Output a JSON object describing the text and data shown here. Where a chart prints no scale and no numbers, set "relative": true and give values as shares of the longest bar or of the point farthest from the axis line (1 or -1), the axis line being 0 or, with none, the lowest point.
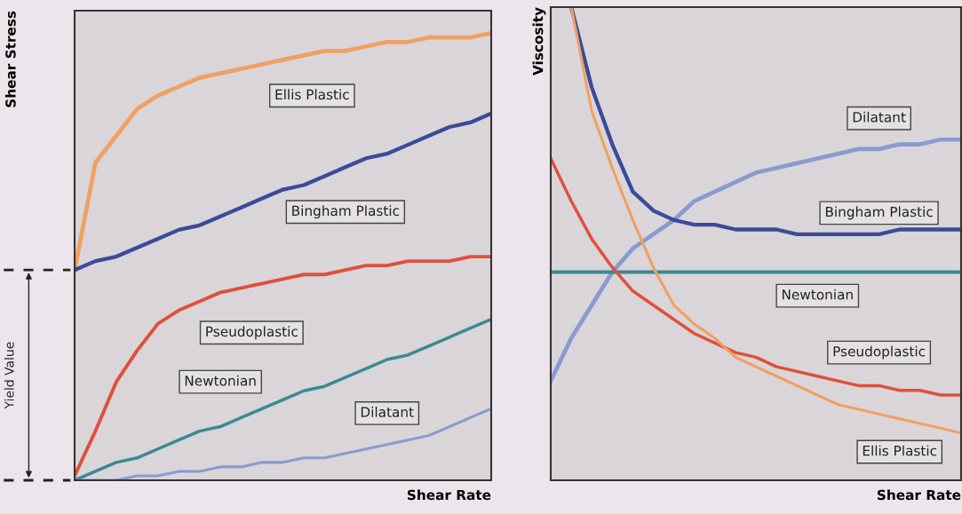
{
  "chart_data": [
    {
      "type": "line",
      "relative": true,
      "ylabel": "Shear Stress",
      "xlabel": "Shear Rate",
      "categories": [
        null,
        null,
        null,
        null,
        null,
        null,
        null,
        null,
        null,
        null,
        null,
        null,
        null,
        null,
        null,
        null,
        null,
        null,
        null,
        null,
        null
      ],
      "annotations": [
        "Yield Value"
      ],
      "series": [
        {
          "name": "Ellis Plastic",
          "color": "#f0a060",
          "values": [
            0.47,
            0.71,
            0.77,
            0.83,
            0.86,
            0.88,
            0.9,
            0.91,
            0.92,
            0.93,
            0.94,
            0.95,
            0.96,
            0.96,
            0.97,
            0.98,
            0.98,
            0.99,
            0.99,
            0.99,
            1.0
          ]
        },
        {
          "name": "Bingham Plastic",
          "color": "#3c4a9a",
          "values": [
            0.47,
            0.49,
            0.5,
            0.52,
            0.54,
            0.56,
            0.57,
            0.59,
            0.61,
            0.63,
            0.65,
            0.66,
            0.68,
            0.7,
            0.72,
            0.73,
            0.75,
            0.77,
            0.79,
            0.8,
            0.82
          ]
        },
        {
          "name": "Pseudoplastic",
          "color": "#e0503a",
          "values": [
            0.01,
            0.11,
            0.22,
            0.29,
            0.35,
            0.38,
            0.4,
            0.42,
            0.43,
            0.44,
            0.45,
            0.46,
            0.46,
            0.47,
            0.48,
            0.48,
            0.49,
            0.49,
            0.49,
            0.5,
            0.5
          ]
        },
        {
          "name": "Newtonian",
          "color": "#3a8a90",
          "values": [
            0,
            0.02,
            0.04,
            0.05,
            0.07,
            0.09,
            0.11,
            0.12,
            0.14,
            0.16,
            0.18,
            0.2,
            0.21,
            0.23,
            0.25,
            0.27,
            0.28,
            0.3,
            0.32,
            0.34,
            0.36
          ]
        },
        {
          "name": "Dilatant",
          "color": "#8a9ad0",
          "values": [
            0,
            0,
            0,
            0.01,
            0.01,
            0.02,
            0.02,
            0.03,
            0.03,
            0.04,
            0.04,
            0.05,
            0.05,
            0.06,
            0.07,
            0.08,
            0.09,
            0.1,
            0.12,
            0.14,
            0.16
          ]
        }
      ]
    },
    {
      "type": "line",
      "relative": true,
      "ylabel": "Viscosity",
      "xlabel": "Shear Rate",
      "categories": [
        null,
        null,
        null,
        null,
        null,
        null,
        null,
        null,
        null,
        null,
        null,
        null,
        null,
        null,
        null,
        null,
        null,
        null,
        null,
        null,
        null
      ],
      "series": [
        {
          "name": "Dilatant",
          "color": "#8a9ad0",
          "values": [
            0.21,
            0.3,
            0.37,
            0.44,
            0.49,
            0.52,
            0.55,
            0.59,
            0.61,
            0.63,
            0.65,
            0.66,
            0.67,
            0.68,
            0.69,
            0.7,
            0.7,
            0.71,
            0.71,
            0.72,
            0.72
          ]
        },
        {
          "name": "Bingham Plastic",
          "color": "#3c4a9a",
          "values": [
            null,
            1.0,
            0.83,
            0.71,
            0.61,
            0.57,
            0.55,
            0.54,
            0.54,
            0.53,
            0.53,
            0.53,
            0.52,
            0.52,
            0.52,
            0.52,
            0.52,
            0.53,
            0.53,
            0.53,
            0.53
          ]
        },
        {
          "name": "Newtonian",
          "color": "#3a8a90",
          "values": [
            0.44,
            0.44,
            0.44,
            0.44,
            0.44,
            0.44,
            0.44,
            0.44,
            0.44,
            0.44,
            0.44,
            0.44,
            0.44,
            0.44,
            0.44,
            0.44,
            0.44,
            0.44,
            0.44,
            0.44,
            0.44
          ]
        },
        {
          "name": "Pseudoplastic",
          "color": "#e0503a",
          "values": [
            0.68,
            0.59,
            0.51,
            0.45,
            0.4,
            0.37,
            0.34,
            0.31,
            0.29,
            0.27,
            0.26,
            0.24,
            0.23,
            0.22,
            0.21,
            0.2,
            0.2,
            0.19,
            0.19,
            0.18,
            0.18
          ]
        },
        {
          "name": "Ellis Plastic",
          "color": "#f0a060",
          "values": [
            null,
            1.0,
            0.78,
            0.66,
            0.55,
            0.45,
            0.37,
            0.33,
            0.3,
            0.26,
            0.24,
            0.22,
            0.2,
            0.18,
            0.16,
            0.15,
            0.14,
            0.13,
            0.12,
            0.11,
            0.1
          ]
        }
      ]
    }
  ]
}
